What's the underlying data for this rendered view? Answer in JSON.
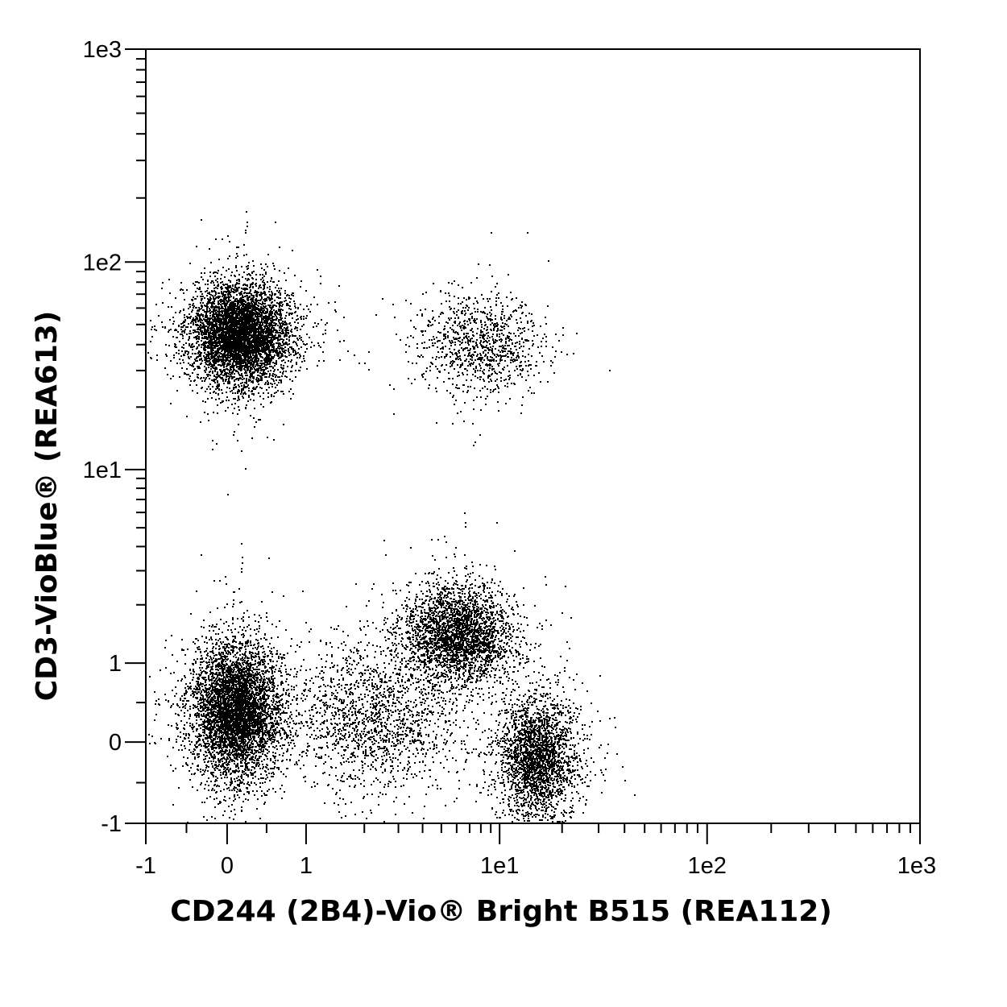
{
  "chart_data": {
    "type": "scatter",
    "title": "",
    "xlabel": "CD244 (2B4)-Vio® Bright B515 (REA112)",
    "ylabel": "CD3-VioBlue® (REA613)",
    "x_scale": "biexponential",
    "y_scale": "biexponential",
    "xlim": [
      -1,
      1000
    ],
    "ylim": [
      -1,
      1000
    ],
    "grid": false,
    "legend": "none",
    "point_color": "#000000",
    "x_ticks": [
      {
        "value": -1,
        "label": "-1"
      },
      {
        "value": 0,
        "label": "0"
      },
      {
        "value": 1,
        "label": "1"
      },
      {
        "value": 10,
        "label": "1e1"
      },
      {
        "value": 100,
        "label": "1e2"
      },
      {
        "value": 1000,
        "label": "1e3"
      }
    ],
    "y_ticks": [
      {
        "value": -1,
        "label": "-1"
      },
      {
        "value": 0,
        "label": "0"
      },
      {
        "value": 1,
        "label": "1"
      },
      {
        "value": 10,
        "label": "1e1"
      },
      {
        "value": 100,
        "label": "1e2"
      },
      {
        "value": 1000,
        "label": "1e3"
      }
    ],
    "populations": [
      {
        "x_center": 0.15,
        "y_center": 45,
        "count": 9000,
        "x_spread": 0.55,
        "y_spread": 0.55,
        "density": "dense"
      },
      {
        "x_center": 8,
        "y_center": 40,
        "count": 1000,
        "x_spread": 0.7,
        "y_spread": 0.55,
        "density": "sparse"
      },
      {
        "x_center": 0.1,
        "y_center": 0.4,
        "count": 8500,
        "x_spread": 0.5,
        "y_spread": 0.75,
        "density": "dense"
      },
      {
        "x_center": 6,
        "y_center": 1.4,
        "count": 3000,
        "x_spread": 0.6,
        "y_spread": 0.55,
        "density": "medium"
      },
      {
        "x_center": 15,
        "y_center": -0.2,
        "count": 2600,
        "x_spread": 0.45,
        "y_spread": 0.7,
        "density": "medium"
      },
      {
        "x_center": 2.2,
        "y_center": 0.3,
        "count": 1600,
        "x_spread": 0.9,
        "y_spread": 0.8,
        "density": "sparse"
      }
    ]
  }
}
